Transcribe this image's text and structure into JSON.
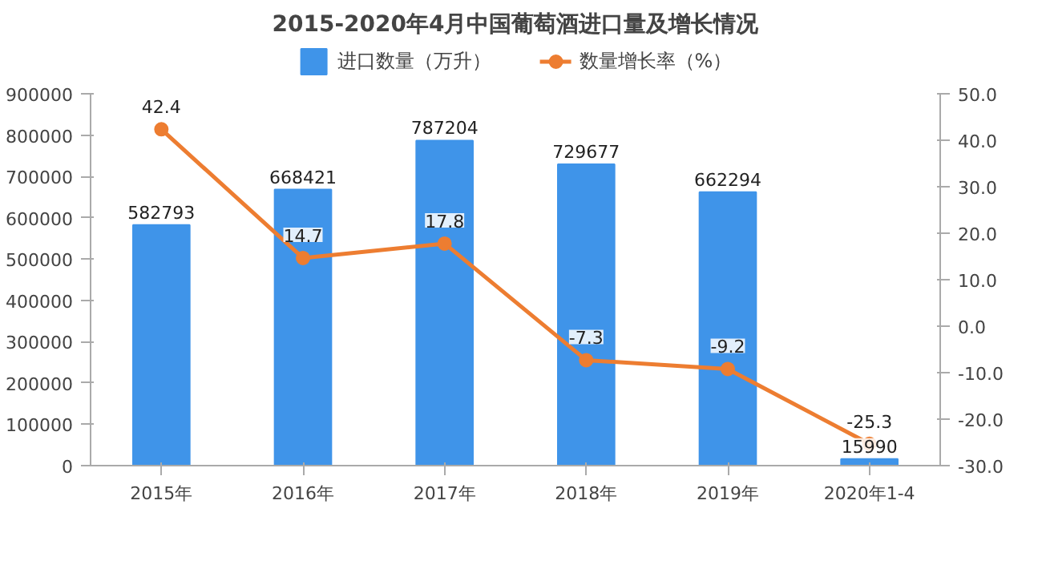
{
  "chart_data": {
    "type": "bar",
    "title": "2015-2020年4月中国葡萄酒进口量及增长情况",
    "categories": [
      "2015年",
      "2016年",
      "2017年",
      "2018年",
      "2019年",
      "2020年1-4"
    ],
    "series": [
      {
        "name": "进口数量（万升）",
        "type": "bar",
        "color": "#3f94e9",
        "values": [
          582793,
          668421,
          787204,
          729677,
          662294,
          15990
        ]
      },
      {
        "name": "数量增长率（%）",
        "type": "line",
        "axis": "y2",
        "color": "#ed7d31",
        "marker": "circle",
        "values": [
          42.4,
          14.7,
          17.8,
          -7.3,
          -9.2,
          -25.3
        ]
      }
    ],
    "ylim": [
      0,
      900000
    ],
    "yticks": [
      0,
      100000,
      200000,
      300000,
      400000,
      500000,
      600000,
      700000,
      800000,
      900000
    ],
    "y2lim": [
      -30,
      50
    ],
    "y2ticks": [
      {
        "value": -30,
        "label": "-30.0"
      },
      {
        "value": -20,
        "label": "-20.0"
      },
      {
        "value": -10,
        "label": "-10.0"
      },
      {
        "value": 0,
        "label": "0.0"
      },
      {
        "value": 10,
        "label": "10.0"
      },
      {
        "value": 20,
        "label": "20.0"
      },
      {
        "value": 30,
        "label": "30.0"
      },
      {
        "value": 40,
        "label": "40.0"
      },
      {
        "value": 50,
        "label": "50.0"
      }
    ],
    "data_labels": true,
    "legend": "top",
    "line_style": "solid"
  }
}
